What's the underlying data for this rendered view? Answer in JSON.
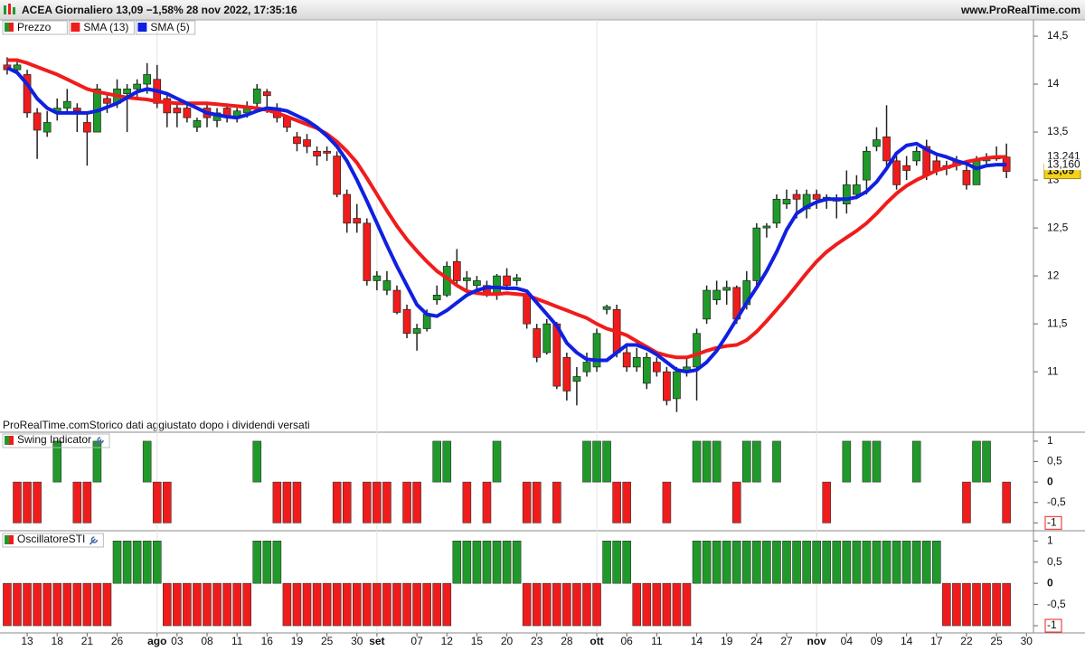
{
  "header": {
    "title": "ACEA Giornaliero 13,09 −1,58% 28 nov 2022, 17:35:16",
    "site": "www.ProRealTime.com"
  },
  "note": "ProRealTime.comStorico dati aggiustato dopo i dividendi versati",
  "chart_data": [
    {
      "type": "candlestick",
      "series": [
        {
          "name": "Prezzo",
          "up_color": "#1f9a2a",
          "down_color": "#f01c1c",
          "last_label": "13,09",
          "last_label_background": "#f5d31a",
          "open": [
            14.2,
            14.15,
            14.1,
            13.7,
            13.5,
            13.7,
            13.75,
            13.75,
            13.6,
            13.5,
            13.85,
            13.8,
            13.9,
            13.95,
            14.0,
            14.05,
            13.85,
            13.75,
            13.75,
            13.55,
            13.75,
            13.62,
            13.75,
            13.65,
            13.7,
            13.8,
            13.92,
            13.75,
            13.65,
            13.45,
            13.42,
            13.3,
            13.3,
            13.25,
            12.85,
            12.6,
            12.55,
            11.95,
            11.85,
            11.85,
            11.65,
            11.4,
            11.45,
            11.75,
            11.8,
            12.15,
            11.95,
            11.9,
            11.9,
            11.8,
            12.0,
            11.95,
            11.8,
            11.45,
            11.2,
            11.5,
            11.15,
            10.9,
            11.0,
            11.05,
            11.65,
            11.65,
            11.2,
            11.05,
            10.88,
            11.1,
            11.0,
            10.72,
            11.0,
            11.05,
            11.55,
            11.75,
            11.85,
            11.88,
            11.7,
            11.95,
            12.5,
            12.55,
            12.75,
            12.85,
            12.7,
            12.85,
            12.8,
            12.8,
            12.75,
            12.85,
            13.0,
            13.35,
            13.45,
            13.2,
            13.15,
            13.2,
            13.35,
            13.2,
            13.15,
            13.2,
            13.1,
            12.95,
            13.2,
            13.22,
            13.24
          ],
          "high": [
            14.28,
            14.25,
            14.15,
            13.75,
            13.72,
            13.85,
            13.95,
            13.8,
            13.7,
            14.0,
            13.9,
            14.05,
            14.0,
            14.05,
            14.22,
            14.2,
            13.9,
            13.8,
            13.8,
            13.65,
            13.8,
            13.75,
            13.8,
            13.75,
            13.82,
            14.0,
            13.95,
            13.8,
            13.68,
            13.5,
            13.48,
            13.35,
            13.35,
            13.3,
            12.9,
            12.75,
            12.6,
            12.05,
            12.05,
            11.9,
            11.7,
            11.5,
            11.65,
            11.9,
            12.15,
            12.28,
            12.05,
            12.0,
            11.95,
            12.02,
            12.08,
            12.02,
            11.85,
            11.5,
            11.55,
            11.52,
            11.2,
            11.05,
            11.2,
            11.45,
            11.7,
            11.7,
            11.3,
            11.25,
            11.2,
            11.15,
            11.05,
            11.05,
            11.15,
            11.45,
            11.9,
            11.95,
            11.95,
            11.9,
            12.05,
            12.55,
            12.55,
            12.85,
            12.9,
            12.9,
            12.9,
            12.9,
            12.85,
            12.85,
            13.1,
            13.05,
            13.35,
            13.55,
            13.78,
            13.25,
            13.25,
            13.35,
            13.42,
            13.25,
            13.2,
            13.25,
            13.15,
            13.25,
            13.28,
            13.35,
            13.38
          ],
          "low": [
            14.1,
            14.12,
            13.65,
            13.22,
            13.45,
            13.62,
            13.7,
            13.5,
            13.15,
            13.5,
            13.7,
            13.75,
            13.5,
            13.85,
            13.9,
            13.75,
            13.55,
            13.55,
            13.6,
            13.5,
            13.55,
            13.55,
            13.6,
            13.6,
            13.65,
            13.75,
            13.7,
            13.6,
            13.5,
            13.3,
            13.28,
            13.15,
            13.2,
            12.82,
            12.45,
            12.45,
            11.9,
            11.85,
            11.8,
            11.6,
            11.35,
            11.22,
            11.42,
            11.7,
            11.78,
            11.9,
            11.85,
            11.85,
            11.78,
            11.75,
            11.85,
            11.9,
            11.45,
            11.1,
            11.18,
            10.82,
            10.7,
            10.65,
            10.95,
            11.0,
            11.6,
            11.15,
            11.0,
            11.0,
            10.82,
            10.95,
            10.65,
            10.58,
            10.95,
            10.7,
            11.5,
            11.7,
            11.7,
            11.5,
            11.65,
            11.9,
            12.4,
            12.5,
            12.7,
            12.6,
            12.6,
            12.7,
            12.7,
            12.6,
            12.65,
            12.8,
            12.85,
            13.3,
            13.15,
            12.9,
            13.0,
            13.15,
            13.0,
            13.05,
            13.05,
            13.1,
            12.9,
            12.95,
            13.15,
            13.2,
            13.02
          ],
          "close": [
            14.15,
            14.2,
            13.7,
            13.52,
            13.6,
            13.75,
            13.82,
            13.72,
            13.5,
            13.95,
            13.8,
            13.95,
            13.95,
            14.0,
            14.1,
            13.8,
            13.7,
            13.7,
            13.65,
            13.62,
            13.65,
            13.7,
            13.65,
            13.72,
            13.75,
            13.95,
            13.88,
            13.65,
            13.55,
            13.38,
            13.35,
            13.25,
            13.28,
            12.85,
            12.55,
            12.55,
            11.95,
            12.0,
            11.95,
            11.62,
            11.4,
            11.45,
            11.6,
            11.8,
            12.1,
            11.95,
            11.98,
            11.95,
            11.8,
            12.0,
            11.9,
            11.98,
            11.5,
            11.15,
            11.5,
            10.85,
            10.8,
            10.95,
            11.1,
            11.4,
            11.68,
            11.2,
            11.05,
            11.15,
            11.15,
            11.0,
            10.7,
            11.0,
            11.05,
            11.4,
            11.85,
            11.85,
            11.88,
            11.55,
            11.95,
            12.5,
            12.52,
            12.8,
            12.8,
            12.8,
            12.85,
            12.8,
            12.82,
            12.78,
            12.95,
            12.95,
            13.3,
            13.42,
            13.2,
            12.95,
            13.1,
            13.3,
            13.05,
            13.1,
            13.12,
            13.15,
            12.95,
            13.2,
            13.22,
            13.25,
            13.09
          ]
        },
        {
          "name": "SMA (13)",
          "color": "#f01c1c",
          "last_label": "13,241",
          "values": [
            14.25,
            14.25,
            14.22,
            14.18,
            14.14,
            14.1,
            14.05,
            14.0,
            13.95,
            13.92,
            13.9,
            13.88,
            13.86,
            13.85,
            13.84,
            13.82,
            13.81,
            13.8,
            13.8,
            13.8,
            13.8,
            13.79,
            13.78,
            13.77,
            13.76,
            13.75,
            13.73,
            13.7,
            13.66,
            13.62,
            13.58,
            13.54,
            13.48,
            13.4,
            13.3,
            13.18,
            13.02,
            12.85,
            12.68,
            12.52,
            12.38,
            12.26,
            12.15,
            12.05,
            11.98,
            11.9,
            11.84,
            11.82,
            11.81,
            11.81,
            11.82,
            11.81,
            11.8,
            11.76,
            11.72,
            11.68,
            11.64,
            11.6,
            11.56,
            11.5,
            11.45,
            11.42,
            11.38,
            11.32,
            11.26,
            11.2,
            11.17,
            11.15,
            11.15,
            11.18,
            11.22,
            11.25,
            11.27,
            11.28,
            11.33,
            11.42,
            11.53,
            11.65,
            11.77,
            11.9,
            12.03,
            12.15,
            12.25,
            12.33,
            12.4,
            12.47,
            12.55,
            12.65,
            12.76,
            12.86,
            12.94,
            13.0,
            13.05,
            13.1,
            13.13,
            13.16,
            13.19,
            13.21,
            13.23,
            13.24,
            13.241
          ]
        },
        {
          "name": "SMA (5)",
          "color": "#1020e0",
          "last_label": "13,160",
          "values": [
            14.17,
            14.12,
            14.0,
            13.85,
            13.75,
            13.7,
            13.7,
            13.7,
            13.7,
            13.72,
            13.76,
            13.8,
            13.86,
            13.92,
            13.95,
            13.93,
            13.9,
            13.85,
            13.8,
            13.75,
            13.7,
            13.68,
            13.66,
            13.65,
            13.68,
            13.72,
            13.75,
            13.74,
            13.72,
            13.67,
            13.62,
            13.55,
            13.46,
            13.35,
            13.2,
            13.0,
            12.78,
            12.55,
            12.32,
            12.1,
            11.9,
            11.7,
            11.6,
            11.58,
            11.64,
            11.72,
            11.8,
            11.85,
            11.88,
            11.88,
            11.87,
            11.87,
            11.84,
            11.72,
            11.6,
            11.48,
            11.3,
            11.2,
            11.13,
            11.12,
            11.12,
            11.2,
            11.28,
            11.28,
            11.24,
            11.18,
            11.1,
            11.02,
            11.0,
            11.02,
            11.1,
            11.22,
            11.38,
            11.55,
            11.72,
            11.88,
            12.05,
            12.25,
            12.48,
            12.65,
            12.72,
            12.77,
            12.8,
            12.8,
            12.8,
            12.82,
            12.88,
            12.98,
            13.12,
            13.28,
            13.36,
            13.38,
            13.32,
            13.27,
            13.24,
            13.2,
            13.17,
            13.12,
            13.15,
            13.16,
            13.16
          ]
        }
      ],
      "xlim": [
        -0.72,
        102.7
      ],
      "xticks": [
        {
          "value": 2,
          "label": "13"
        },
        {
          "value": 5,
          "label": "18"
        },
        {
          "value": 8,
          "label": "21"
        },
        {
          "value": 11,
          "label": "26"
        },
        {
          "value": 15,
          "label": "ago"
        },
        {
          "value": 17,
          "label": "03"
        },
        {
          "value": 20,
          "label": "08"
        },
        {
          "value": 23,
          "label": "11"
        },
        {
          "value": 26,
          "label": "16"
        },
        {
          "value": 29,
          "label": "19"
        },
        {
          "value": 32,
          "label": "25"
        },
        {
          "value": 35,
          "label": "30"
        },
        {
          "value": 37,
          "label": "set"
        },
        {
          "value": 41,
          "label": "07"
        },
        {
          "value": 44,
          "label": "12"
        },
        {
          "value": 47,
          "label": "15"
        },
        {
          "value": 50,
          "label": "20"
        },
        {
          "value": 53,
          "label": "23"
        },
        {
          "value": 56,
          "label": "28"
        },
        {
          "value": 59,
          "label": "ott"
        },
        {
          "value": 62,
          "label": "06"
        },
        {
          "value": 65,
          "label": "11"
        },
        {
          "value": 69,
          "label": "14"
        },
        {
          "value": 72,
          "label": "19"
        },
        {
          "value": 75,
          "label": "24"
        },
        {
          "value": 78,
          "label": "27"
        },
        {
          "value": 81,
          "label": "nov"
        },
        {
          "value": 84,
          "label": "04"
        },
        {
          "value": 87,
          "label": "09"
        },
        {
          "value": 90,
          "label": "14"
        },
        {
          "value": 93,
          "label": "17"
        },
        {
          "value": 96,
          "label": "22"
        },
        {
          "value": 99,
          "label": "25"
        },
        {
          "value": 102,
          "label": "30"
        }
      ],
      "ylim": [
        10.37,
        14.67
      ],
      "yticks": [
        {
          "value": 14.5,
          "label": "14,5"
        },
        14,
        {
          "value": 13.5,
          "label": "13,5"
        },
        13,
        {
          "value": 12.5,
          "label": "12,5"
        },
        12,
        {
          "value": 11.5,
          "label": "11,5"
        },
        11
      ]
    },
    {
      "type": "bar",
      "title": "Swing Indicator",
      "up_color": "#1f9a2a",
      "down_color": "#f01c1c",
      "values": [
        0,
        -1,
        -1,
        -1,
        0,
        1,
        0,
        -1,
        -1,
        1,
        0,
        0,
        0,
        0,
        1,
        -1,
        -1,
        0,
        0,
        0,
        0,
        0,
        0,
        0,
        0,
        1,
        0,
        -1,
        -1,
        -1,
        0,
        0,
        0,
        -1,
        -1,
        0,
        -1,
        -1,
        -1,
        0,
        -1,
        -1,
        0,
        1,
        1,
        0,
        -1,
        0,
        -1,
        1,
        0,
        0,
        -1,
        -1,
        0,
        -1,
        0,
        0,
        1,
        1,
        1,
        -1,
        -1,
        0,
        0,
        0,
        -1,
        0,
        0,
        1,
        1,
        1,
        0,
        -1,
        1,
        1,
        0,
        1,
        0,
        0,
        0,
        0,
        -1,
        0,
        1,
        0,
        1,
        1,
        0,
        0,
        0,
        1,
        0,
        0,
        0,
        0,
        -1,
        1,
        1,
        0,
        -1
      ],
      "ylim": [
        -1.17,
        1.22
      ],
      "yticks": [
        1,
        {
          "value": 0.5,
          "label": "0,5"
        },
        0,
        {
          "value": -0.5,
          "label": "-0,5"
        },
        -1
      ]
    },
    {
      "type": "bar",
      "title": "OscillatoreSTI",
      "up_color": "#1f9a2a",
      "down_color": "#f01c1c",
      "values": [
        -1,
        -1,
        -1,
        -1,
        -1,
        -1,
        -1,
        -1,
        -1,
        -1,
        -1,
        1,
        1,
        1,
        1,
        1,
        -1,
        -1,
        -1,
        -1,
        -1,
        -1,
        -1,
        -1,
        -1,
        1,
        1,
        1,
        -1,
        -1,
        -1,
        -1,
        -1,
        -1,
        -1,
        -1,
        -1,
        -1,
        -1,
        -1,
        -1,
        -1,
        -1,
        -1,
        -1,
        1,
        1,
        1,
        1,
        1,
        1,
        1,
        -1,
        -1,
        -1,
        -1,
        -1,
        -1,
        -1,
        -1,
        1,
        1,
        1,
        -1,
        -1,
        -1,
        -1,
        -1,
        -1,
        1,
        1,
        1,
        1,
        1,
        1,
        1,
        1,
        1,
        1,
        1,
        1,
        1,
        1,
        1,
        1,
        1,
        1,
        1,
        1,
        1,
        1,
        1,
        1,
        1,
        -1,
        -1,
        -1,
        -1,
        -1,
        -1,
        -1
      ],
      "ylim": [
        -1.17,
        1.22
      ],
      "yticks": [
        1,
        {
          "value": 0.5,
          "label": "0,5"
        },
        0,
        {
          "value": -0.5,
          "label": "-0,5"
        },
        -1
      ]
    }
  ]
}
